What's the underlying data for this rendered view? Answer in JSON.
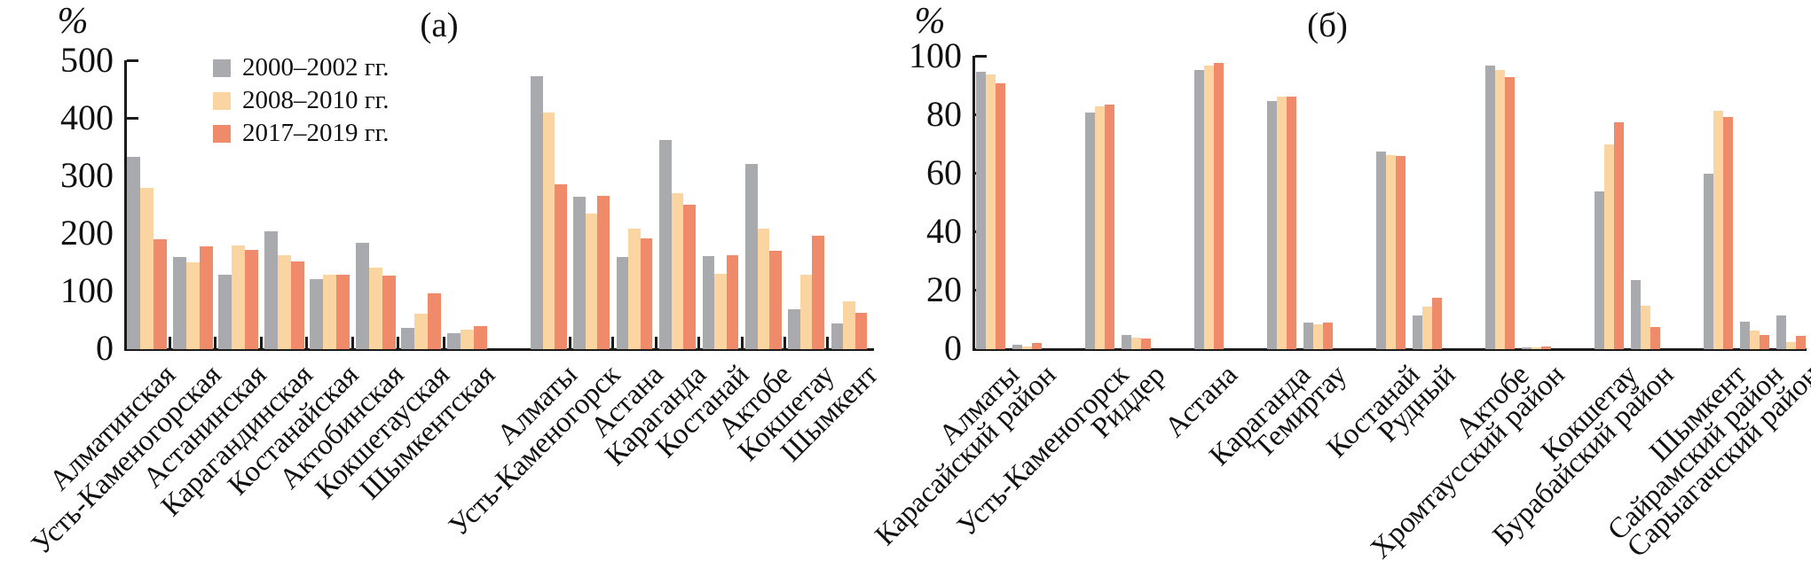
{
  "series_colors": [
    "#a8aaad",
    "#fbd5a1",
    "#ef8a6a"
  ],
  "axis_color": "#1a1a1a",
  "chart_data": [
    {
      "id": "a",
      "type": "bar",
      "title": "(а)",
      "ylabel": "%",
      "ylim": [
        0,
        500
      ],
      "yticks": [
        0,
        100,
        200,
        300,
        400,
        500
      ],
      "grid": false,
      "legend_position": "upper-left",
      "legend": [
        "2000–2002 гг.",
        "2008–2010 гг.",
        "2017–2019 гг."
      ],
      "categories": [
        "Алматинская",
        "Усть-Каменогорская",
        "Астанинская",
        "Карагандинская",
        "Костанайская",
        "Актобинская",
        "Кокшетауская",
        "Шымкентская",
        "Алматы",
        "Усть-Каменогорск",
        "Астана",
        "Караганда",
        "Костанай",
        "Актобе",
        "Кокшетау",
        "Шымкент"
      ],
      "series": [
        {
          "name": "2000–2002 гг.",
          "values": [
            334,
            160,
            129,
            205,
            121,
            184,
            37,
            27,
            474,
            265,
            160,
            363,
            162,
            322,
            69,
            45
          ]
        },
        {
          "name": "2008–2010 гг.",
          "values": [
            280,
            151,
            180,
            163,
            129,
            142,
            62,
            34,
            411,
            235,
            210,
            271,
            131,
            210,
            129,
            83
          ]
        },
        {
          "name": "2017–2019 гг.",
          "values": [
            191,
            179,
            172,
            153,
            129,
            128,
            97,
            40,
            286,
            266,
            192,
            251,
            163,
            171,
            197,
            63
          ]
        }
      ]
    },
    {
      "id": "b",
      "type": "bar",
      "title": "(б)",
      "ylabel": "%",
      "ylim": [
        0,
        100
      ],
      "yticks": [
        0,
        20,
        40,
        60,
        80,
        100
      ],
      "grid": false,
      "legend": null,
      "categories": [
        "Алматы",
        "Карасайский район",
        "Усть-Каменогорск",
        "Риддер",
        "Астана",
        "Караганда",
        "Темиртау",
        "Костанай",
        "Рудный",
        "Актобе",
        "Хромтаусский район",
        "Кокшетау",
        "Бурабайский район",
        "Шымкент",
        "Сайрамский район",
        "Сарыагачский район"
      ],
      "series": [
        {
          "name": "2000–2002 гг.",
          "values": [
            95,
            1.5,
            81,
            5,
            95.5,
            85,
            9,
            67.5,
            11.5,
            97,
            0.5,
            54,
            23.5,
            60,
            9.5,
            11.5
          ]
        },
        {
          "name": "2008–2010 гг.",
          "values": [
            94,
            1,
            83,
            4,
            97,
            86.5,
            8.5,
            66.5,
            14.5,
            95.5,
            0.5,
            70,
            15,
            81.5,
            6.5,
            2.5
          ]
        },
        {
          "name": "2017–2019 гг.",
          "values": [
            91,
            2,
            83.5,
            3.5,
            98,
            86.5,
            9,
            66,
            17.5,
            93,
            1,
            77.5,
            7.5,
            79.5,
            5,
            4.5
          ]
        }
      ]
    }
  ]
}
